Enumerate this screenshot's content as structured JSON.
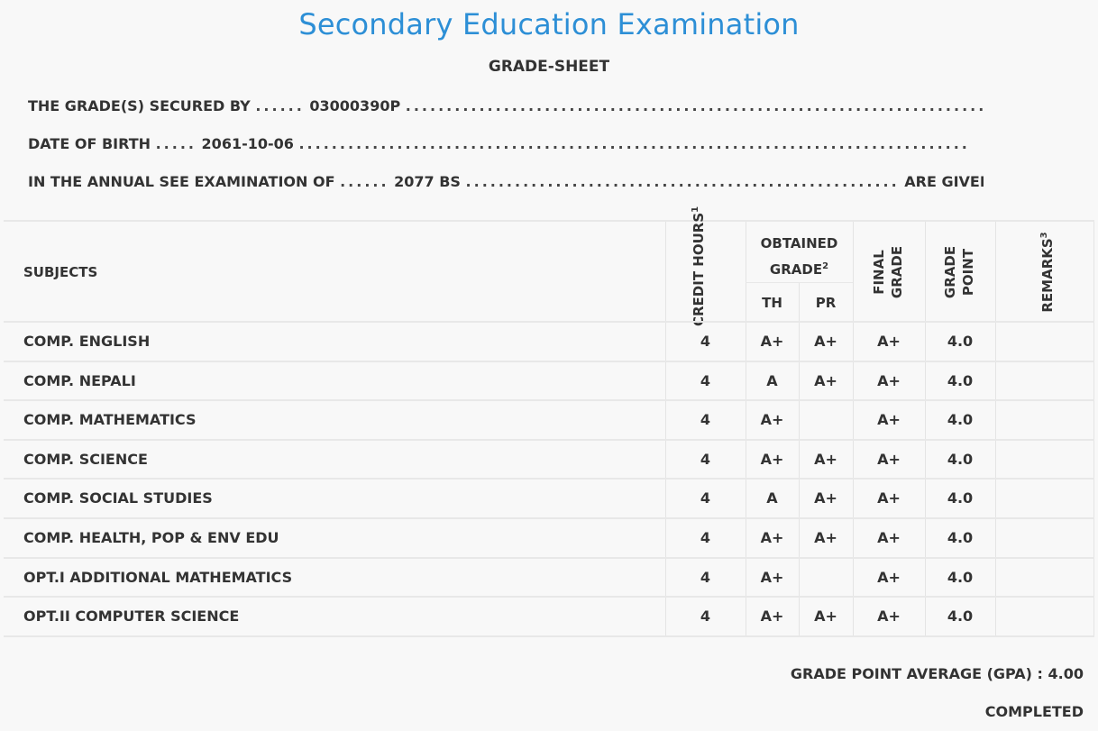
{
  "header": {
    "title": "Secondary Education Examination",
    "subtitle": "GRADE-SHEET"
  },
  "info": {
    "secured_by_label": "THE GRADE(S) SECURED BY",
    "secured_by_value": "03000390P",
    "dob_label": "DATE OF BIRTH",
    "dob_value": "2061-10-06",
    "exam_label": "IN THE ANNUAL SEE EXAMINATION OF",
    "exam_value": "2077 BS",
    "exam_suffix": "ARE GIVEN BELOW"
  },
  "table": {
    "headers": {
      "subjects": "SUBJECTS",
      "credit_hours": "CREDIT HOURS",
      "credit_hours_sup": "1",
      "obtained_grade": "OBTAINED GRADE",
      "obtained_grade_sup": "2",
      "th": "TH",
      "pr": "PR",
      "final_grade": "FINAL GRADE",
      "grade_point": "GRADE POINT",
      "remarks": "REMARKS",
      "remarks_sup": "3"
    },
    "rows": [
      {
        "subject": "COMP. ENGLISH",
        "credit": "4",
        "th": "A+",
        "pr": "A+",
        "final": "A+",
        "gp": "4.0",
        "remarks": ""
      },
      {
        "subject": "COMP. NEPALI",
        "credit": "4",
        "th": "A",
        "pr": "A+",
        "final": "A+",
        "gp": "4.0",
        "remarks": ""
      },
      {
        "subject": "COMP. MATHEMATICS",
        "credit": "4",
        "th": "A+",
        "pr": "",
        "final": "A+",
        "gp": "4.0",
        "remarks": ""
      },
      {
        "subject": "COMP. SCIENCE",
        "credit": "4",
        "th": "A+",
        "pr": "A+",
        "final": "A+",
        "gp": "4.0",
        "remarks": ""
      },
      {
        "subject": "COMP. SOCIAL STUDIES",
        "credit": "4",
        "th": "A",
        "pr": "A+",
        "final": "A+",
        "gp": "4.0",
        "remarks": ""
      },
      {
        "subject": "COMP. HEALTH, POP & ENV EDU",
        "credit": "4",
        "th": "A+",
        "pr": "A+",
        "final": "A+",
        "gp": "4.0",
        "remarks": ""
      },
      {
        "subject": "OPT.I ADDITIONAL MATHEMATICS",
        "credit": "4",
        "th": "A+",
        "pr": "",
        "final": "A+",
        "gp": "4.0",
        "remarks": ""
      },
      {
        "subject": "OPT.II COMPUTER SCIENCE",
        "credit": "4",
        "th": "A+",
        "pr": "A+",
        "final": "A+",
        "gp": "4.0",
        "remarks": ""
      }
    ]
  },
  "footer": {
    "gpa_text": "GRADE POINT AVERAGE (GPA) : 4.00",
    "status": "COMPLETED"
  }
}
